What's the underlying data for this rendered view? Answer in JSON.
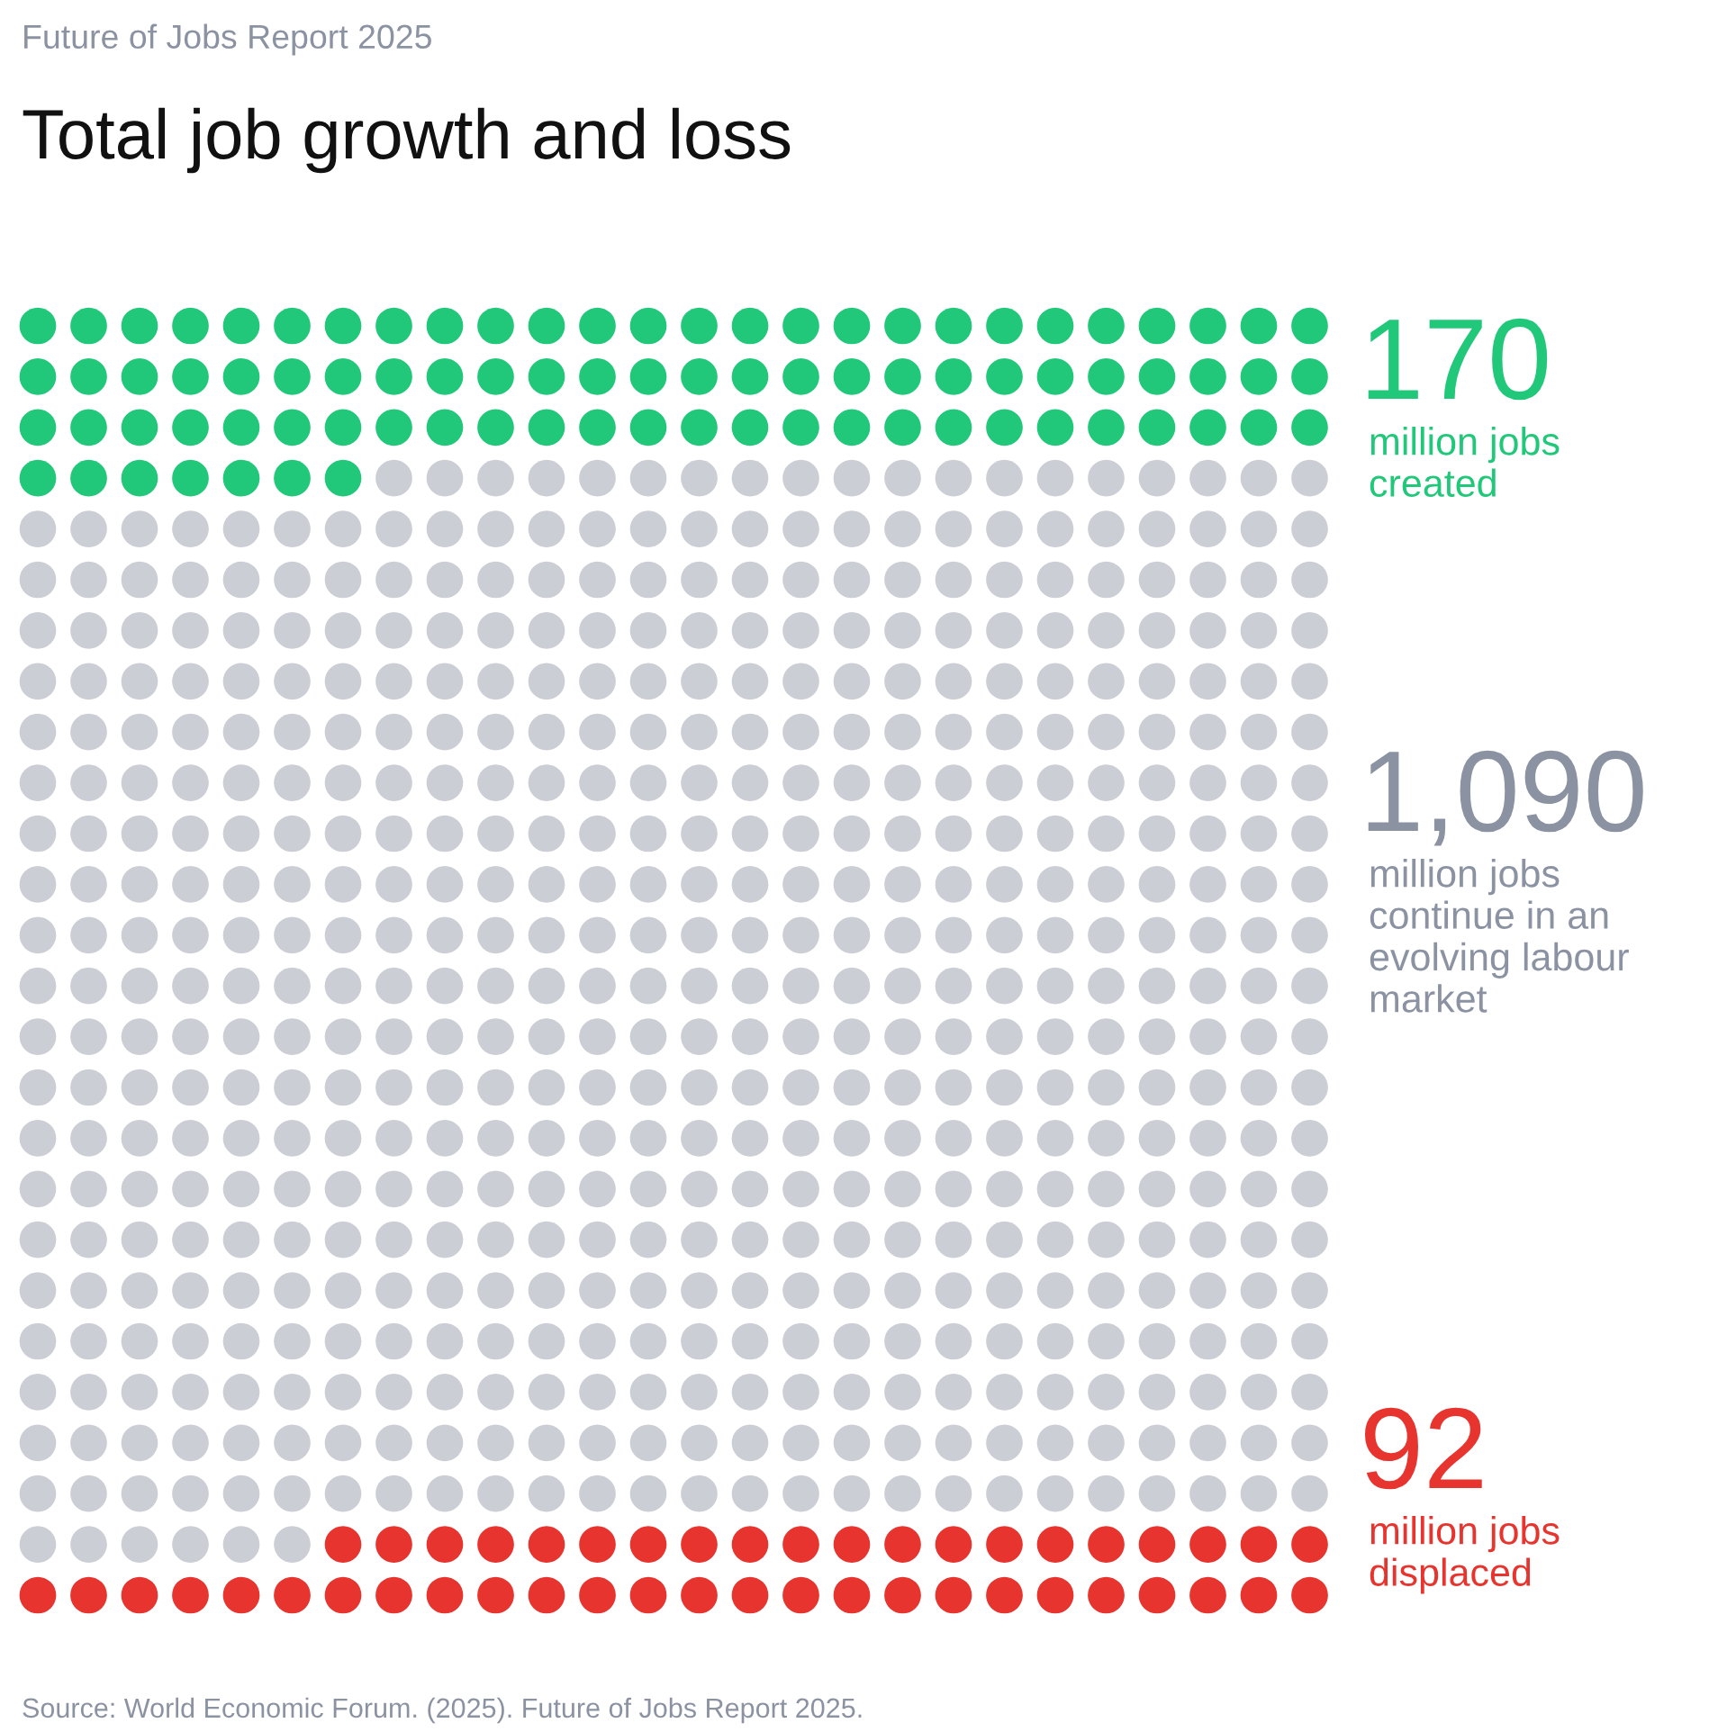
{
  "chart_data": {
    "type": "other",
    "subtitle": "Future of Jobs Report 2025",
    "title": "Total job growth and loss",
    "categories": [
      "million jobs\ncreated",
      "million jobs\ncontinue in an\nevolving labour\nmarket",
      "million jobs\ndisplaced"
    ],
    "values": [
      170,
      1090,
      92
    ],
    "value_labels": [
      "170",
      "1,090",
      "92"
    ],
    "colors": [
      "#21c87a",
      "#cbced4",
      "#e8342e"
    ],
    "annotations": [
      "Source: World Economic Forum. (2025). Future of Jobs Report 2025."
    ]
  }
}
